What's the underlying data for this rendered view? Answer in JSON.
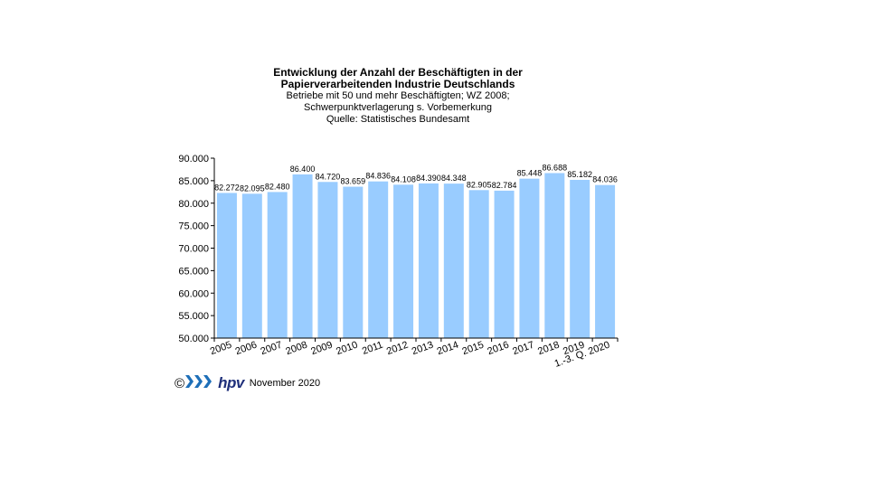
{
  "title": {
    "line1": "Entwicklung der Anzahl der Beschäftigten  in der",
    "line2": "Papierverarbeitenden Industrie Deutschlands",
    "line3": "Betriebe  mit 50 und  mehr Beschäftigten;  WZ 2008;",
    "line4": "Schwerpunktverlagerung   s. Vorbemerkung",
    "line5": "Quelle:  Statistisches Bundesamt"
  },
  "footer": {
    "copyright": "©",
    "logo": "hpv",
    "date": "November 2020"
  },
  "colors": {
    "bar": "#99ccff",
    "axis": "#000000"
  },
  "chart_data": {
    "type": "bar",
    "categories": [
      "2005",
      "2006",
      "2007",
      "2008",
      "2009",
      "2010",
      "2011",
      "2012",
      "2013",
      "2014",
      "2015",
      "2016",
      "2017",
      "2018",
      "2019",
      "1.-3. Q. 2020"
    ],
    "values": [
      82272,
      82095,
      82480,
      86400,
      84720,
      83659,
      84836,
      84108,
      84390,
      84348,
      82905,
      82784,
      85448,
      86688,
      85182,
      84036
    ],
    "value_labels": [
      "82.272",
      "82.095",
      "82.480",
      "86.400",
      "84.720",
      "83.659",
      "84.836",
      "84.108",
      "84.390",
      "84.348",
      "82.905",
      "82.784",
      "85.448",
      "86.688",
      "85.182",
      "84.036"
    ],
    "yticks": [
      50000,
      55000,
      60000,
      65000,
      70000,
      75000,
      80000,
      85000,
      90000
    ],
    "ytick_labels": [
      "50.000",
      "55.000",
      "60.000",
      "65.000",
      "70.000",
      "75.000",
      "80.000",
      "85.000",
      "90.000"
    ],
    "ylim": [
      50000,
      90000
    ],
    "grid": false,
    "legend": false
  }
}
